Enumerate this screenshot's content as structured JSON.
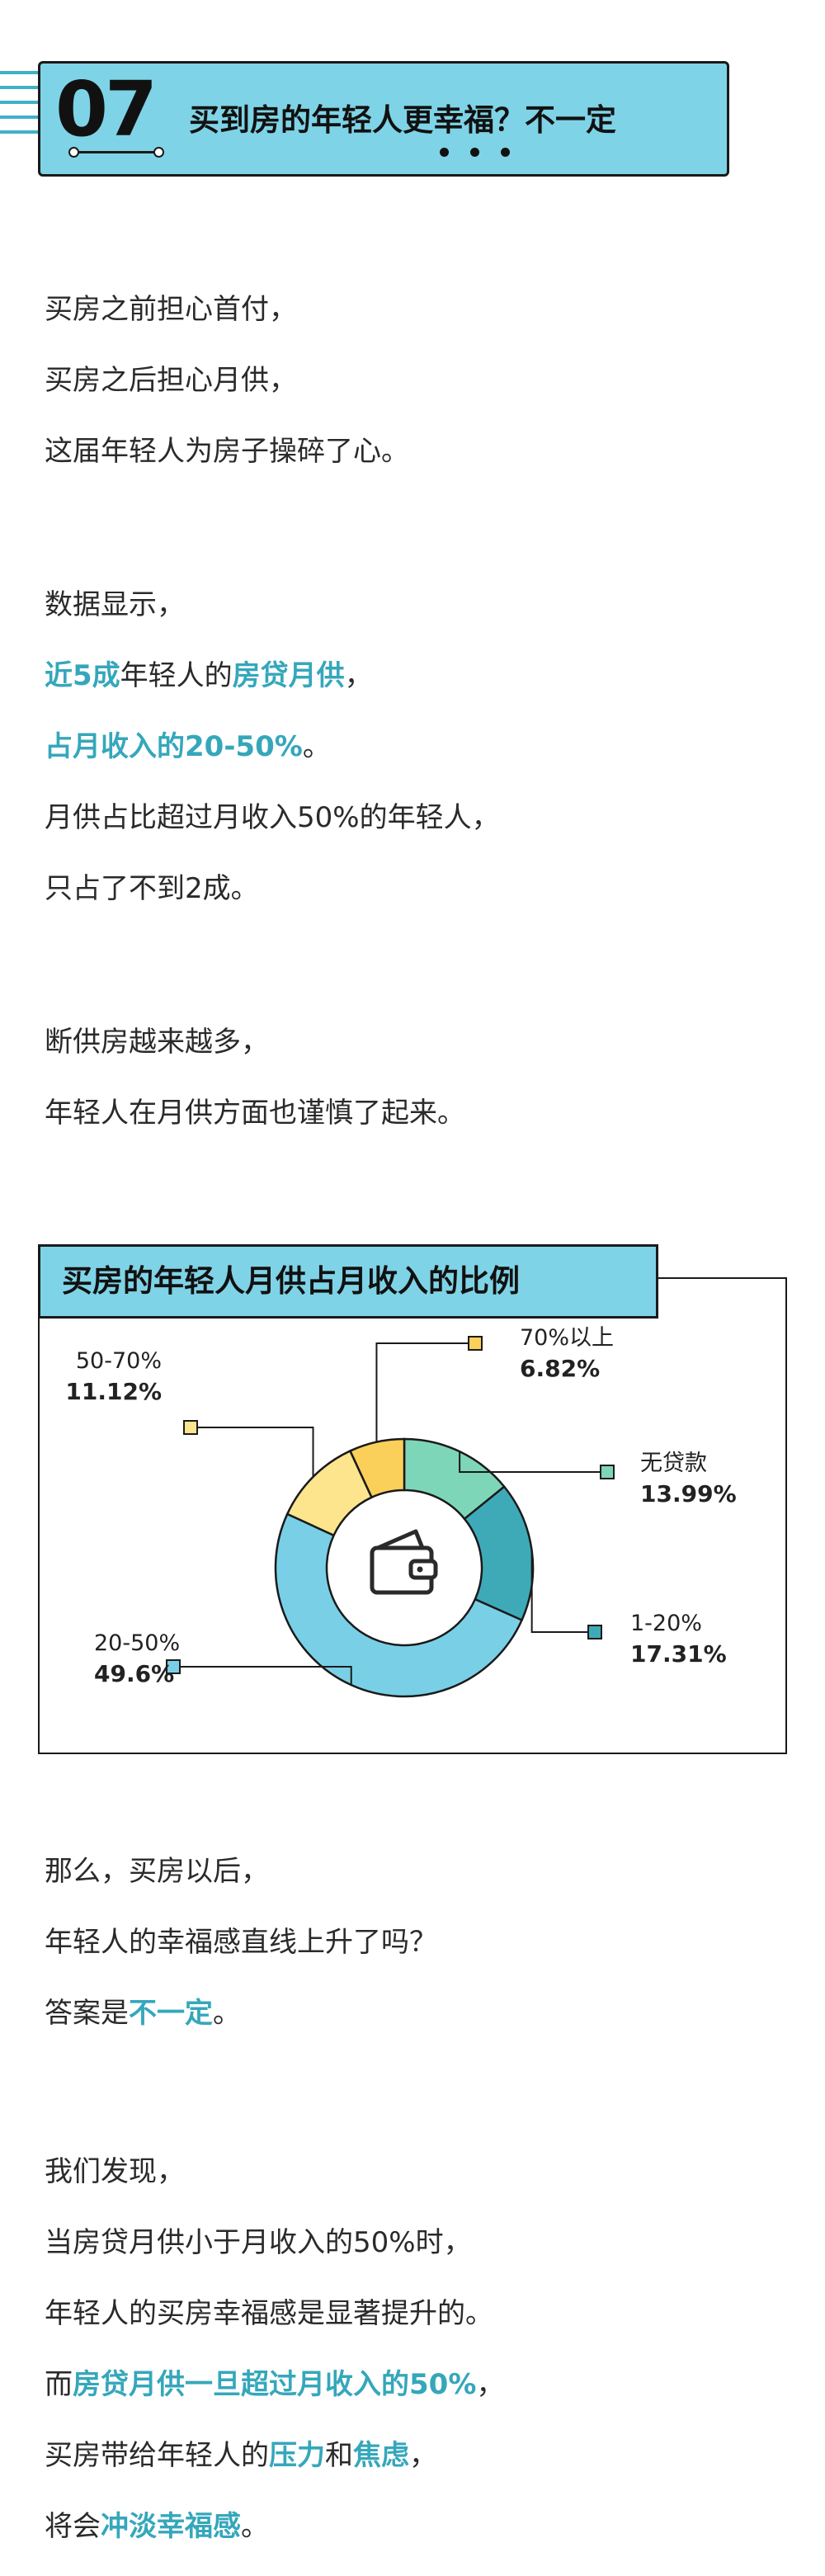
{
  "header": {
    "number": "07",
    "title": "买到房的年轻人更幸福？不一定"
  },
  "intro": [
    "买房之前担心首付，",
    "买房之后担心月供，",
    "这届年轻人为房子操碎了心。"
  ],
  "data_section": {
    "l1": "数据显示，",
    "l2_hl1": "近5成",
    "l2_mid": "年轻人的",
    "l2_hl2": "房贷月供",
    "l2_end": "，",
    "l3_hl": "占月收入的20-50%",
    "l3_end": "。",
    "l4": "月供占比超过月收入50%的年轻人，",
    "l5": "只占了不到2成。"
  },
  "default_section": [
    "断供房越来越多，",
    "年轻人在月供方面也谨慎了起来。"
  ],
  "chart_title": "买房的年轻人月供占月收入的比例",
  "chart_data": {
    "type": "pie",
    "donut": true,
    "title": "买房的年轻人月供占月收入的比例",
    "slices": [
      {
        "label": "无贷款",
        "value": 13.99,
        "display": "13.99%",
        "color": "#7ed6b8"
      },
      {
        "label": "1-20%",
        "value": 17.31,
        "display": "17.31%",
        "color": "#3eaab8"
      },
      {
        "label": "20-50%",
        "value": 49.6,
        "display": "49.6%",
        "color": "#79d0e6"
      },
      {
        "label": "50-70%",
        "value": 11.12,
        "display": "11.12%",
        "color": "#fde58e"
      },
      {
        "label": "70%以上",
        "value": 6.82,
        "display": "6.82%",
        "color": "#fbd05a"
      }
    ]
  },
  "happiness_q": {
    "l1": "那么，买房以后，",
    "l2": "年轻人的幸福感直线上升了吗？",
    "l3_pre": "答案是",
    "l3_hl": "不一定",
    "l3_end": "。"
  },
  "findings": {
    "l1": "我们发现，",
    "l2": "当房贷月供小于月收入的50%时，",
    "l3": "年轻人的买房幸福感是显著提升的。",
    "l4_pre": "而",
    "l4_hl": "房贷月供一旦超过月收入的50%",
    "l4_end": "，",
    "l5_pre": "买房带给年轻人的",
    "l5_hl1": "压力",
    "l5_mid": "和",
    "l5_hl2": "焦虑",
    "l5_end": "，",
    "l6_pre": "将会",
    "l6_hl": "冲淡幸福感",
    "l6_end": "。"
  },
  "colors": {
    "accent": "#35a7bb",
    "banner_bg": "#7fd3e6",
    "wallet_icon": "wallet-icon"
  }
}
